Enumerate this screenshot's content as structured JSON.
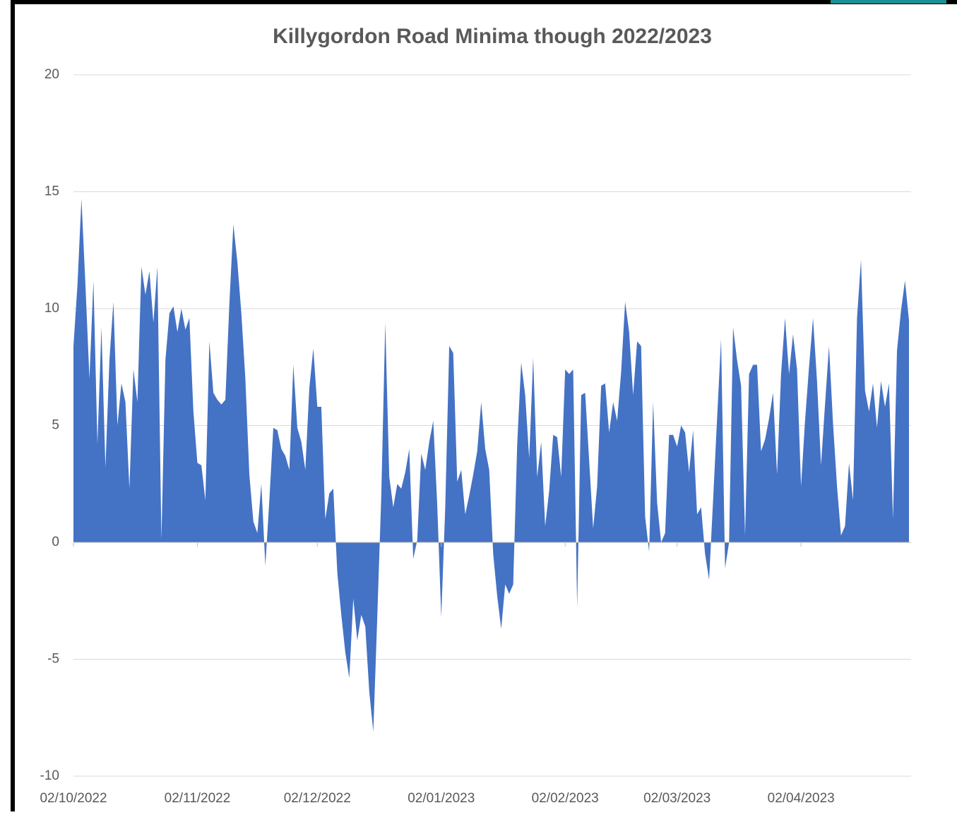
{
  "chart_data": {
    "type": "area",
    "title": "Killygordon Road Minima though 2022/2023",
    "color": "#4472c4",
    "grid": true,
    "ylim": [
      -10,
      20
    ],
    "yticks": [
      -10,
      -5,
      0,
      5,
      10,
      15,
      20
    ],
    "categories": [
      "02/10/2022",
      null,
      null,
      null,
      null,
      null,
      null,
      null,
      null,
      null,
      null,
      null,
      null,
      null,
      null,
      null,
      null,
      null,
      null,
      null,
      null,
      null,
      null,
      null,
      null,
      null,
      null,
      null,
      null,
      null,
      null,
      "02/11/2022",
      null,
      null,
      null,
      null,
      null,
      null,
      null,
      null,
      null,
      null,
      null,
      null,
      null,
      null,
      null,
      null,
      null,
      null,
      null,
      null,
      null,
      null,
      null,
      null,
      null,
      null,
      null,
      null,
      null,
      "02/12/2022",
      null,
      null,
      null,
      null,
      null,
      null,
      null,
      null,
      null,
      null,
      null,
      null,
      null,
      null,
      null,
      null,
      null,
      null,
      null,
      null,
      null,
      null,
      null,
      null,
      null,
      null,
      null,
      null,
      null,
      null,
      "02/01/2023",
      null,
      null,
      null,
      null,
      null,
      null,
      null,
      null,
      null,
      null,
      null,
      null,
      null,
      null,
      null,
      null,
      null,
      null,
      null,
      null,
      null,
      null,
      null,
      null,
      null,
      null,
      null,
      null,
      null,
      null,
      "02/02/2023",
      null,
      null,
      null,
      null,
      null,
      null,
      null,
      null,
      null,
      null,
      null,
      null,
      null,
      null,
      null,
      null,
      null,
      null,
      null,
      null,
      null,
      null,
      null,
      null,
      null,
      null,
      null,
      "02/03/2023",
      null,
      null,
      null,
      null,
      null,
      null,
      null,
      null,
      null,
      null,
      null,
      null,
      null,
      null,
      null,
      null,
      null,
      null,
      null,
      null,
      null,
      null,
      null,
      null,
      null,
      null,
      null,
      null,
      null,
      null,
      "02/04/2023",
      null,
      null,
      null,
      null,
      null,
      null,
      null,
      null,
      null,
      null,
      null,
      null,
      null,
      null,
      null,
      null,
      null,
      null,
      null,
      null,
      null,
      null,
      null,
      null,
      null,
      null,
      null
    ],
    "values": [
      8.4,
      11,
      14.7,
      11,
      7,
      11.2,
      4.2,
      9.2,
      3.2,
      7.8,
      10.3,
      5,
      6.8,
      6,
      2.3,
      7.4,
      6,
      11.8,
      10.6,
      11.6,
      9.4,
      11.8,
      0.1,
      7.8,
      9.8,
      10.1,
      9,
      10,
      9.1,
      9.6,
      5.6,
      3.4,
      3.3,
      1.8,
      8.6,
      6.4,
      6.1,
      5.9,
      6.1,
      10.2,
      13.6,
      12,
      9.8,
      7,
      2.9,
      0.9,
      0.4,
      2.5,
      -1,
      1.8,
      4.9,
      4.8,
      4,
      3.7,
      3.1,
      7.6,
      4.9,
      4.3,
      3.1,
      6.6,
      8.3,
      5.8,
      5.8,
      1,
      2.1,
      2.3,
      -1.3,
      -3.1,
      -4.7,
      -5.8,
      -2.4,
      -4.2,
      -3.1,
      -3.6,
      -6.4,
      -8.1,
      -3.2,
      2,
      9.4,
      2.8,
      1.5,
      2.5,
      2.3,
      3,
      4,
      -0.7,
      0.1,
      3.8,
      3.1,
      4.3,
      5.2,
      1.6,
      -3.2,
      1.5,
      8.4,
      8.1,
      2.6,
      3.1,
      1.2,
      2,
      2.9,
      3.9,
      6,
      4,
      3.1,
      -0.5,
      -2.3,
      -3.7,
      -1.8,
      -2.2,
      -1.8,
      4.2,
      7.7,
      6.3,
      3.6,
      7.9,
      2.8,
      4.3,
      0.7,
      2.2,
      4.6,
      4.5,
      2.8,
      7.4,
      7.2,
      7.4,
      -2.8,
      6.3,
      6.4,
      3.5,
      0.6,
      2.4,
      6.7,
      6.8,
      4.7,
      6,
      5.2,
      7.3,
      10.3,
      9,
      6.3,
      8.6,
      8.4,
      1.1,
      -0.4,
      6,
      1.7,
      0,
      0.4,
      4.6,
      4.6,
      4.1,
      5,
      4.7,
      3,
      4.8,
      1.2,
      1.5,
      -0.5,
      -1.6,
      1.8,
      5.3,
      8.7,
      -1.1,
      0,
      9.2,
      7.8,
      6.7,
      0.3,
      7.2,
      7.6,
      7.6,
      3.9,
      4.4,
      5.3,
      6.4,
      2.9,
      7.2,
      9.6,
      7.2,
      8.9,
      7.4,
      2.4,
      5.2,
      7.5,
      9.6,
      6.9,
      3.3,
      5.9,
      8.4,
      5.1,
      2.4,
      0.3,
      0.7,
      3.4,
      1.8,
      9.6,
      12.1,
      6.5,
      5.6,
      6.8,
      4.9,
      6.9,
      5.8,
      6.8,
      1,
      8.2,
      9.9,
      11.2,
      9.5
    ]
  }
}
